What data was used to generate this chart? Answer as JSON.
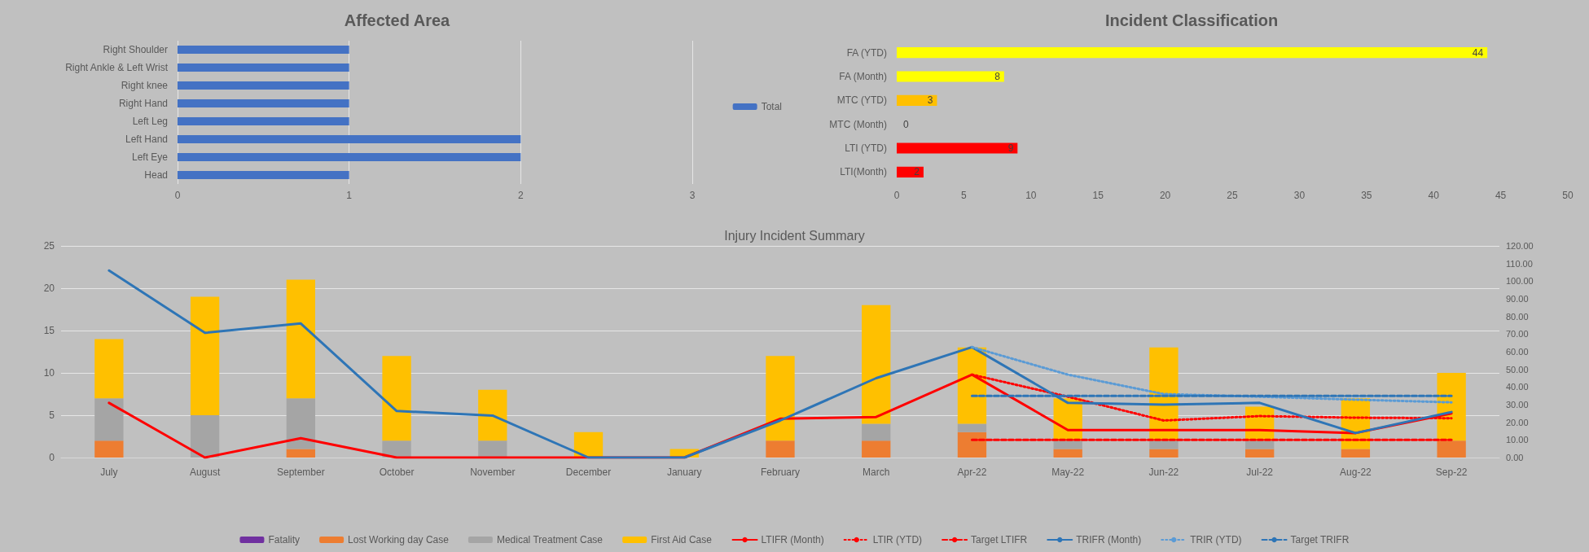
{
  "chart_data": [
    {
      "type": "bar",
      "orientation": "horizontal",
      "title": "Affected Area",
      "categories": [
        "Right Shoulder",
        "Right Ankle & Left Wrist",
        "Right knee",
        "Right Hand",
        "Left Leg",
        "Left Hand",
        "Left Eye",
        "Head"
      ],
      "series": [
        {
          "name": "Total",
          "color": "#4472c4",
          "values": [
            1,
            1,
            1,
            1,
            1,
            2,
            2,
            1
          ]
        }
      ],
      "xlim": [
        0,
        3
      ],
      "xticks": [
        0,
        1,
        2,
        3
      ],
      "grid": "x",
      "legend": "right"
    },
    {
      "type": "bar",
      "orientation": "horizontal",
      "title": "Incident Classification",
      "categories": [
        "FA (YTD)",
        "FA (Month)",
        "MTC (YTD)",
        "MTC (Month)",
        "LTI (YTD)",
        "LTI(Month)"
      ],
      "values": [
        44,
        8,
        3,
        0,
        9,
        2
      ],
      "colors": [
        "#ffff00",
        "#ffff00",
        "#ffc000",
        "#ffc000",
        "#ff0000",
        "#ff0000"
      ],
      "xlim": [
        0,
        50
      ],
      "xticks": [
        0,
        5,
        10,
        15,
        20,
        25,
        30,
        35,
        40,
        45,
        50
      ],
      "data_labels": true
    },
    {
      "type": "bar",
      "stacked": true,
      "title": "Injury Incident Summary",
      "categories": [
        "July",
        "August",
        "September",
        "October",
        "November",
        "December",
        "January",
        "February",
        "March",
        "Apr-22",
        "May-22",
        "Jun-22",
        "Jul-22",
        "Aug-22",
        "Sep-22"
      ],
      "series": [
        {
          "name": "Fatality",
          "color": "#7030a0",
          "values": [
            0,
            0,
            0,
            0,
            0,
            0,
            0,
            0,
            0,
            0,
            0,
            0,
            0,
            0,
            0
          ]
        },
        {
          "name": "Lost Working day Case",
          "color": "#ed7d31",
          "values": [
            2,
            0,
            1,
            0,
            0,
            0,
            0,
            2,
            2,
            3,
            1,
            1,
            1,
            1,
            2
          ]
        },
        {
          "name": "Medical Treatment Case",
          "color": "#a5a5a5",
          "values": [
            5,
            5,
            6,
            2,
            2,
            0,
            0,
            0,
            2,
            1,
            1,
            1,
            1,
            0,
            0
          ]
        },
        {
          "name": "First Aid Case",
          "color": "#ffc000",
          "values": [
            7,
            14,
            14,
            10,
            6,
            3,
            1,
            10,
            14,
            9,
            5,
            11,
            4,
            6,
            8
          ]
        },
        {
          "name": "LTIFR (Month)",
          "type": "line",
          "axis": "y2",
          "line_style": "solid",
          "color": "#ff0000",
          "values": [
            31,
            0,
            11,
            0,
            0,
            0,
            0,
            22,
            23,
            47,
            15.6,
            15.6,
            15.6,
            13.9,
            25
          ]
        },
        {
          "name": "LTIR (YTD)",
          "type": "line",
          "axis": "y2",
          "line_style": "dotted",
          "color": "#ff0000",
          "values": [
            null,
            null,
            null,
            null,
            null,
            null,
            null,
            null,
            null,
            47,
            34.5,
            21,
            23.5,
            22.6,
            22.3
          ]
        },
        {
          "name": "Target LTIFR",
          "type": "line",
          "axis": "y2",
          "line_style": "dashed",
          "color": "#ff0000",
          "values": [
            null,
            null,
            null,
            null,
            null,
            null,
            null,
            null,
            null,
            10,
            10,
            10,
            10,
            10,
            10
          ]
        },
        {
          "name": "TRIFR (Month)",
          "type": "line",
          "axis": "y2",
          "line_style": "solid",
          "color": "#2e75b6",
          "values": [
            106,
            70.7,
            76,
            26.4,
            23.8,
            0,
            0,
            21,
            45,
            62.6,
            31,
            30,
            31,
            13.9,
            25.8
          ]
        },
        {
          "name": "TRIR (YTD)",
          "type": "line",
          "axis": "y2",
          "line_style": "dotted",
          "color": "#5b9bd5",
          "values": [
            null,
            null,
            null,
            null,
            null,
            null,
            null,
            null,
            null,
            62.6,
            47,
            36,
            34.5,
            32.8,
            31.3
          ]
        },
        {
          "name": "Target TRIFR",
          "type": "line",
          "axis": "y2",
          "line_style": "dashed",
          "color": "#2e75b6",
          "values": [
            null,
            null,
            null,
            null,
            null,
            null,
            null,
            null,
            null,
            35,
            35,
            35,
            35,
            35,
            35
          ]
        }
      ],
      "ylim": [
        0,
        25
      ],
      "yticks": [
        0,
        5,
        10,
        15,
        20,
        25
      ],
      "y2lim": [
        0,
        120
      ],
      "y2ticks": [
        {
          "value": 0,
          "label": "0.00"
        },
        {
          "value": 10,
          "label": "10.00"
        },
        {
          "value": 20,
          "label": "20.00"
        },
        {
          "value": 30,
          "label": "30.00"
        },
        {
          "value": 40,
          "label": "40.00"
        },
        {
          "value": 50,
          "label": "50.00"
        },
        {
          "value": 60,
          "label": "60.00"
        },
        {
          "value": 70,
          "label": "70.00"
        },
        {
          "value": 80,
          "label": "80.00"
        },
        {
          "value": 90,
          "label": "90.00"
        },
        {
          "value": 100,
          "label": "100.00"
        },
        {
          "value": 110,
          "label": "110.00"
        },
        {
          "value": 120,
          "label": "120.00"
        }
      ],
      "grid": "y",
      "legend": "bottom",
      "marker": "none"
    }
  ]
}
